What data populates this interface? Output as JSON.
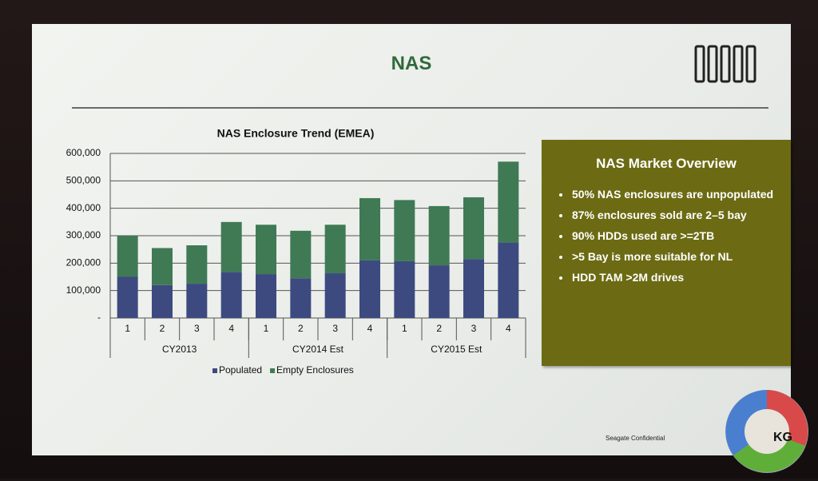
{
  "slide": {
    "title": "NAS",
    "panel": {
      "title": "NAS Market Overview",
      "bullets": [
        "50% NAS enclosures are unpopulated",
        "87% enclosures sold are 2–5 bay",
        "90% HDDs used are >=2TB",
        ">5 Bay is more suitable for NL",
        "HDD TAM >2M drives"
      ]
    },
    "footer": "Seagate Confidential",
    "logo": "KG"
  },
  "chart_data": {
    "type": "bar",
    "stacked": true,
    "title": "NAS Enclosure Trend (EMEA)",
    "categories": [
      "1",
      "2",
      "3",
      "4",
      "1",
      "2",
      "3",
      "4",
      "1",
      "2",
      "3",
      "4"
    ],
    "groups": [
      "CY2013",
      "CY2014 Est",
      "CY2015 Est"
    ],
    "series": [
      {
        "name": "Populated",
        "color": "#3d4a80",
        "values": [
          150000,
          120000,
          125000,
          168000,
          160000,
          145000,
          163000,
          210000,
          207000,
          192000,
          215000,
          275000
        ]
      },
      {
        "name": "Empty Enclosures",
        "color": "#3f7a55",
        "values": [
          150000,
          135000,
          140000,
          182000,
          180000,
          173000,
          177000,
          227000,
          223000,
          216000,
          225000,
          295000
        ]
      }
    ],
    "ylim": [
      0,
      600000
    ],
    "yticks": [
      {
        "value": 0,
        "label": "-"
      },
      {
        "value": 100000,
        "label": "100,000"
      },
      {
        "value": 200000,
        "label": "200,000"
      },
      {
        "value": 300000,
        "label": "300,000"
      },
      {
        "value": 400000,
        "label": "400,000"
      },
      {
        "value": 500000,
        "label": "500,000"
      },
      {
        "value": 600000,
        "label": "600,000"
      }
    ],
    "grid": true,
    "legend": "bottom"
  }
}
